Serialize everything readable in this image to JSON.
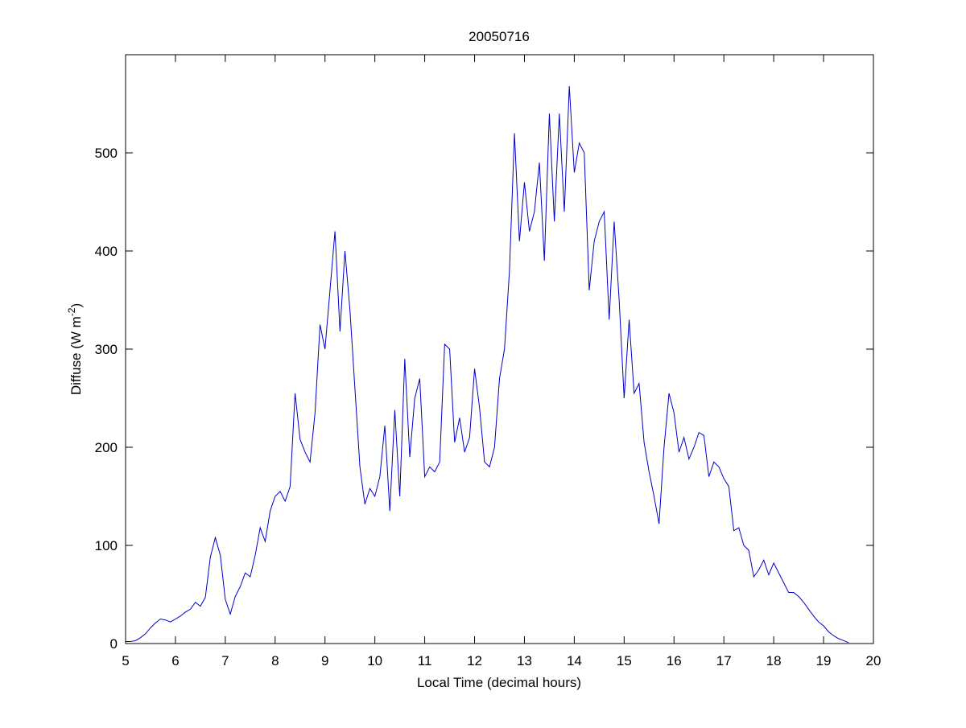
{
  "chart_data": {
    "type": "line",
    "title": "20050716",
    "xlabel": "Local Time (decimal hours)",
    "ylabel": {
      "text": "Diffuse (W m",
      "sup": "-2",
      "end": ")"
    },
    "x": [
      5.0,
      5.1,
      5.2,
      5.3,
      5.4,
      5.5,
      5.6,
      5.7,
      5.8,
      5.9,
      6.0,
      6.1,
      6.2,
      6.3,
      6.4,
      6.5,
      6.6,
      6.7,
      6.8,
      6.9,
      7.0,
      7.1,
      7.2,
      7.3,
      7.4,
      7.5,
      7.6,
      7.7,
      7.8,
      7.9,
      8.0,
      8.1,
      8.2,
      8.3,
      8.4,
      8.5,
      8.6,
      8.7,
      8.8,
      8.9,
      9.0,
      9.1,
      9.2,
      9.3,
      9.4,
      9.5,
      9.6,
      9.7,
      9.8,
      9.9,
      10.0,
      10.1,
      10.2,
      10.3,
      10.4,
      10.5,
      10.6,
      10.7,
      10.8,
      10.9,
      11.0,
      11.1,
      11.2,
      11.3,
      11.4,
      11.5,
      11.6,
      11.7,
      11.8,
      11.9,
      12.0,
      12.1,
      12.2,
      12.3,
      12.4,
      12.5,
      12.6,
      12.7,
      12.8,
      12.9,
      13.0,
      13.1,
      13.2,
      13.3,
      13.4,
      13.5,
      13.6,
      13.7,
      13.8,
      13.9,
      14.0,
      14.1,
      14.2,
      14.3,
      14.4,
      14.5,
      14.6,
      14.7,
      14.8,
      14.9,
      15.0,
      15.1,
      15.2,
      15.3,
      15.4,
      15.5,
      15.6,
      15.7,
      15.8,
      15.9,
      16.0,
      16.1,
      16.2,
      16.3,
      16.4,
      16.5,
      16.6,
      16.7,
      16.8,
      16.9,
      17.0,
      17.1,
      17.2,
      17.3,
      17.4,
      17.5,
      17.6,
      17.7,
      17.8,
      17.9,
      18.0,
      18.1,
      18.2,
      18.3,
      18.4,
      18.5,
      18.6,
      18.7,
      18.8,
      18.9,
      19.0,
      19.1,
      19.2,
      19.3,
      19.4,
      19.5
    ],
    "series": [
      {
        "color": "#0000c8",
        "values": [
          2,
          2,
          3,
          6,
          10,
          16,
          21,
          25,
          24,
          22,
          25,
          28,
          32,
          35,
          42,
          38,
          47,
          88,
          108,
          90,
          45,
          30,
          48,
          58,
          72,
          68,
          90,
          118,
          104,
          135,
          150,
          155,
          145,
          160,
          255,
          208,
          195,
          185,
          235,
          325,
          300,
          360,
          420,
          318,
          400,
          340,
          260,
          180,
          142,
          158,
          150,
          170,
          222,
          135,
          238,
          150,
          290,
          190,
          250,
          270,
          170,
          180,
          175,
          185,
          305,
          300,
          205,
          230,
          195,
          210,
          280,
          240,
          185,
          180,
          200,
          270,
          300,
          380,
          520,
          410,
          470,
          420,
          440,
          490,
          390,
          540,
          430,
          540,
          440,
          568,
          480,
          510,
          500,
          360,
          410,
          430,
          440,
          330,
          430,
          350,
          250,
          330,
          255,
          265,
          205,
          175,
          150,
          122,
          200,
          255,
          235,
          195,
          210,
          188,
          200,
          215,
          212,
          170,
          185,
          180,
          168,
          160,
          115,
          118,
          100,
          95,
          68,
          75,
          85,
          70,
          82,
          72,
          62,
          52,
          52,
          48,
          42,
          35,
          28,
          22,
          18,
          12,
          8,
          5,
          3,
          1
        ]
      }
    ],
    "xlim": [
      5,
      20
    ],
    "xticks": [
      5,
      6,
      7,
      8,
      9,
      10,
      11,
      12,
      13,
      14,
      15,
      16,
      17,
      18,
      19,
      20
    ],
    "ylim": [
      0,
      600
    ],
    "yticks": [
      0,
      100,
      200,
      300,
      400,
      500
    ],
    "grid": false
  }
}
